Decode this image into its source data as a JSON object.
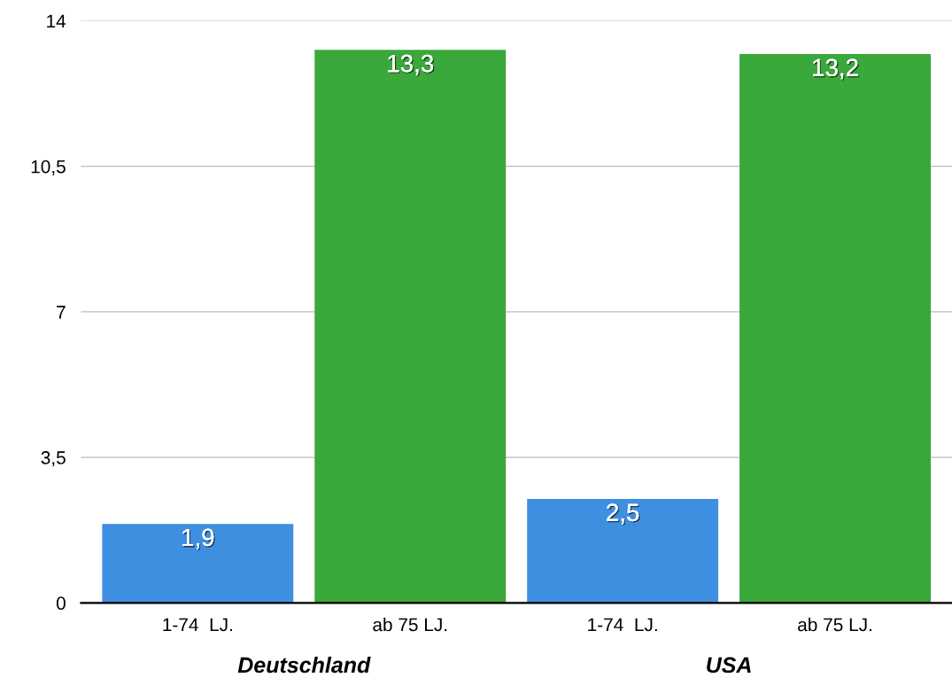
{
  "chart_data": {
    "type": "bar",
    "categories": [
      "1-74  LJ.",
      "ab 75 LJ.",
      "1-74  LJ.",
      "ab 75 LJ."
    ],
    "values": [
      1.9,
      13.3,
      2.5,
      13.2
    ],
    "colors": [
      "#3f8fe0",
      "#3aa83a",
      "#3f8fe0",
      "#3aa83a"
    ],
    "value_labels": [
      "1,9",
      "13,3",
      "2,5",
      "13,2"
    ],
    "ylim": [
      0,
      14
    ],
    "yticks": [
      0,
      {
        "value": 3.5,
        "label": "3,5"
      },
      7,
      {
        "value": 10.5,
        "label": "10,5"
      },
      14
    ],
    "grid": "y",
    "annotations": [
      "Deutschland",
      "USA"
    ]
  }
}
